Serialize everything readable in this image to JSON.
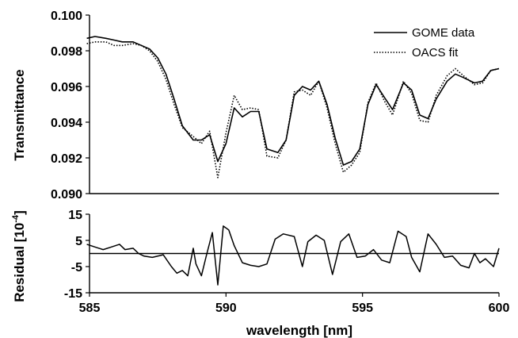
{
  "chart_data": [
    {
      "type": "line",
      "ylabel": "Transmittance",
      "xlim": [
        585,
        600
      ],
      "ylim": [
        0.09,
        0.1
      ],
      "yticks": [
        "0.090",
        "0.092",
        "0.094",
        "0.096",
        "0.098",
        "0.100"
      ],
      "legend_position": "top-right",
      "grid": false,
      "series": [
        {
          "name": "GOME data",
          "style": "solid",
          "color": "#000000",
          "x": [
            584.9,
            585.2,
            585.6,
            585.9,
            586.2,
            586.6,
            586.9,
            587.2,
            587.5,
            587.8,
            588.1,
            588.4,
            588.8,
            589.1,
            589.4,
            589.7,
            590.0,
            590.3,
            590.6,
            590.9,
            591.2,
            591.5,
            591.9,
            592.2,
            592.5,
            592.8,
            593.1,
            593.4,
            593.7,
            594.0,
            594.3,
            594.6,
            594.9,
            595.2,
            595.5,
            595.8,
            596.1,
            596.5,
            596.8,
            597.1,
            597.4,
            597.7,
            598.1,
            598.4,
            598.7,
            599.1,
            599.4,
            599.7,
            600.0
          ],
          "y": [
            0.0987,
            0.0988,
            0.0987,
            0.0986,
            0.0985,
            0.0985,
            0.0983,
            0.0981,
            0.0976,
            0.0967,
            0.0953,
            0.0938,
            0.093,
            0.093,
            0.0933,
            0.0918,
            0.0928,
            0.0948,
            0.0943,
            0.0946,
            0.0946,
            0.0925,
            0.0923,
            0.093,
            0.0955,
            0.096,
            0.0958,
            0.0963,
            0.095,
            0.0931,
            0.0916,
            0.0918,
            0.0925,
            0.095,
            0.0961,
            0.0954,
            0.0947,
            0.0962,
            0.0958,
            0.0944,
            0.0942,
            0.0953,
            0.0963,
            0.0967,
            0.0965,
            0.0962,
            0.0963,
            0.0969,
            0.097
          ]
        },
        {
          "name": "OACS fit",
          "style": "dotted",
          "color": "#000000",
          "x": [
            584.9,
            585.2,
            585.6,
            585.9,
            586.2,
            586.6,
            586.9,
            587.2,
            587.5,
            587.8,
            588.1,
            588.4,
            588.8,
            589.1,
            589.4,
            589.7,
            590.0,
            590.3,
            590.6,
            590.9,
            591.2,
            591.5,
            591.9,
            592.2,
            592.5,
            592.8,
            593.1,
            593.4,
            593.7,
            594.0,
            594.3,
            594.6,
            594.9,
            595.2,
            595.5,
            595.8,
            596.1,
            596.5,
            596.8,
            597.1,
            597.4,
            597.7,
            598.1,
            598.4,
            598.7,
            599.1,
            599.4,
            599.7,
            600.0
          ],
          "y": [
            0.0984,
            0.0985,
            0.0985,
            0.0983,
            0.0983,
            0.0984,
            0.0983,
            0.098,
            0.0974,
            0.0964,
            0.095,
            0.0937,
            0.0932,
            0.0928,
            0.0935,
            0.0909,
            0.0934,
            0.0955,
            0.0947,
            0.0948,
            0.0947,
            0.0921,
            0.092,
            0.093,
            0.0957,
            0.0958,
            0.0955,
            0.0963,
            0.0948,
            0.0928,
            0.0912,
            0.0916,
            0.0923,
            0.0951,
            0.0962,
            0.0952,
            0.0944,
            0.0963,
            0.0956,
            0.0941,
            0.094,
            0.0955,
            0.0966,
            0.097,
            0.0966,
            0.0961,
            0.0962,
            0.0969,
            0.097
          ]
        }
      ]
    },
    {
      "type": "line",
      "xlabel": "wavelength [nm]",
      "ylabel_base": "Residual [10",
      "ylabel_exponent": "-4",
      "ylabel_close": "]",
      "xlim": [
        585,
        600
      ],
      "ylim": [
        -15,
        15
      ],
      "xticks": [
        "585",
        "590",
        "595",
        "600"
      ],
      "yticks": [
        "-15",
        "-5",
        "5",
        "15"
      ],
      "grid": false,
      "zero_line": 0,
      "series": [
        {
          "style": "solid",
          "color": "#000000",
          "x": [
            584.9,
            585.2,
            585.5,
            585.8,
            586.1,
            586.3,
            586.6,
            586.8,
            587.0,
            587.3,
            587.7,
            588.0,
            588.2,
            588.4,
            588.6,
            588.8,
            588.9,
            589.1,
            589.3,
            589.5,
            589.7,
            589.9,
            590.1,
            590.3,
            590.6,
            590.9,
            591.2,
            591.5,
            591.8,
            592.1,
            592.5,
            592.8,
            593.0,
            593.3,
            593.6,
            593.9,
            594.2,
            594.5,
            594.8,
            595.1,
            595.4,
            595.7,
            596.0,
            596.3,
            596.6,
            596.8,
            597.1,
            597.4,
            597.7,
            598.0,
            598.3,
            598.6,
            598.9,
            599.1,
            599.3,
            599.5,
            599.8,
            600.0
          ],
          "y": [
            3.5,
            2.5,
            1.5,
            2.5,
            3.5,
            1.5,
            2,
            0,
            -1,
            -1.5,
            -0.5,
            -5,
            -7.5,
            -6.5,
            -8.5,
            2,
            -4,
            -8.5,
            0,
            8,
            -12,
            10.5,
            9,
            3,
            -3.5,
            -4.5,
            -5,
            -4,
            5.5,
            7.5,
            6.5,
            -5,
            4.5,
            7,
            5,
            -8,
            4.5,
            7.5,
            -1.5,
            -1,
            1.5,
            -2.5,
            -3.5,
            8.5,
            6.5,
            -1.5,
            -7,
            7.5,
            3.5,
            -1.5,
            -1,
            -4.5,
            -5.5,
            0,
            -3.5,
            -2,
            -5,
            2
          ]
        }
      ]
    }
  ]
}
